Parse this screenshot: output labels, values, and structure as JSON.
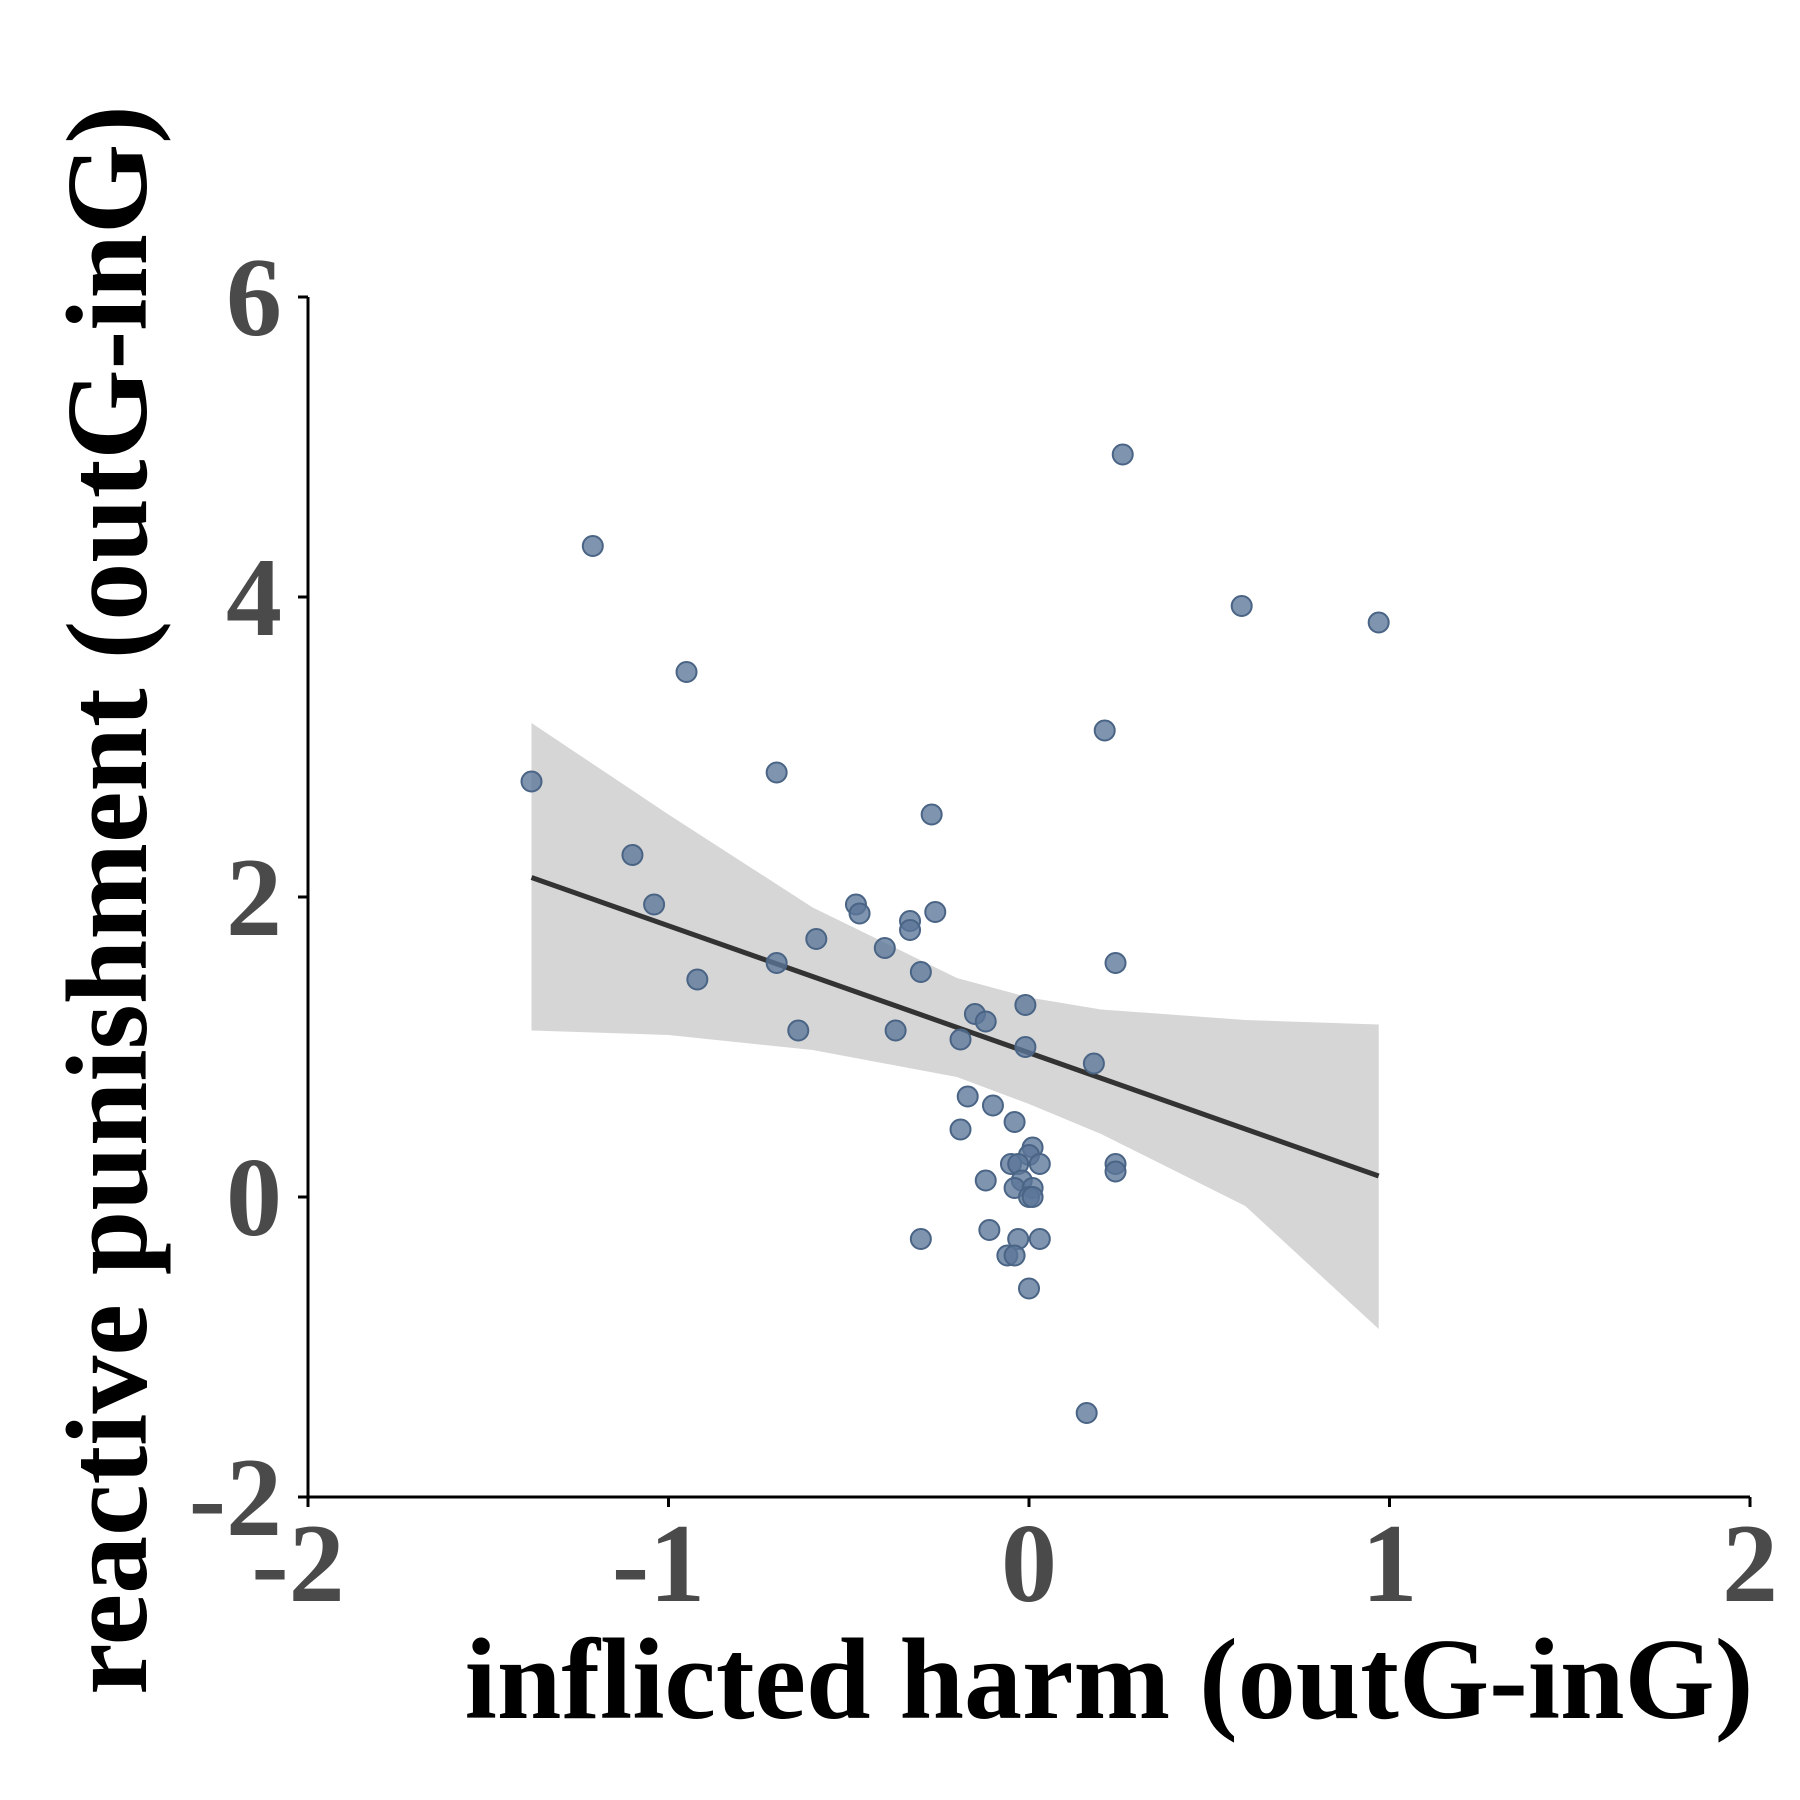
{
  "chart_data": {
    "type": "scatter",
    "xlabel": "inflicted harm (outG-inG)",
    "ylabel": "reactive punishment (outG-inG)",
    "xlim": [
      -2,
      2
    ],
    "ylim": [
      -2,
      6
    ],
    "xticks": [
      -2,
      -1,
      0,
      1,
      2
    ],
    "yticks": [
      -2,
      0,
      2,
      4,
      6
    ],
    "grid": false,
    "points": [
      {
        "x": 0.26,
        "y": 4.95
      },
      {
        "x": -1.21,
        "y": 4.34
      },
      {
        "x": 0.59,
        "y": 3.94
      },
      {
        "x": 0.97,
        "y": 3.83
      },
      {
        "x": -0.95,
        "y": 3.5
      },
      {
        "x": 0.21,
        "y": 3.11
      },
      {
        "x": -0.7,
        "y": 2.83
      },
      {
        "x": -1.38,
        "y": 2.77
      },
      {
        "x": -0.27,
        "y": 2.55
      },
      {
        "x": -1.1,
        "y": 2.28
      },
      {
        "x": -1.04,
        "y": 1.95
      },
      {
        "x": -0.48,
        "y": 1.95
      },
      {
        "x": -0.47,
        "y": 1.89
      },
      {
        "x": -0.26,
        "y": 1.9
      },
      {
        "x": -0.33,
        "y": 1.84
      },
      {
        "x": -0.33,
        "y": 1.78
      },
      {
        "x": -0.59,
        "y": 1.72
      },
      {
        "x": -0.4,
        "y": 1.66
      },
      {
        "x": -0.7,
        "y": 1.56
      },
      {
        "x": 0.24,
        "y": 1.56
      },
      {
        "x": -0.3,
        "y": 1.5
      },
      {
        "x": -0.92,
        "y": 1.45
      },
      {
        "x": -0.01,
        "y": 1.28
      },
      {
        "x": -0.15,
        "y": 1.22
      },
      {
        "x": -0.12,
        "y": 1.17
      },
      {
        "x": -0.64,
        "y": 1.11
      },
      {
        "x": -0.37,
        "y": 1.11
      },
      {
        "x": -0.19,
        "y": 1.05
      },
      {
        "x": -0.01,
        "y": 1.0
      },
      {
        "x": 0.18,
        "y": 0.89
      },
      {
        "x": -0.17,
        "y": 0.67
      },
      {
        "x": -0.1,
        "y": 0.61
      },
      {
        "x": -0.04,
        "y": 0.5
      },
      {
        "x": -0.19,
        "y": 0.45
      },
      {
        "x": 0.01,
        "y": 0.33
      },
      {
        "x": 0.0,
        "y": 0.28
      },
      {
        "x": -0.05,
        "y": 0.22
      },
      {
        "x": -0.03,
        "y": 0.22
      },
      {
        "x": 0.03,
        "y": 0.22
      },
      {
        "x": 0.24,
        "y": 0.22
      },
      {
        "x": 0.24,
        "y": 0.17
      },
      {
        "x": -0.12,
        "y": 0.11
      },
      {
        "x": -0.02,
        "y": 0.11
      },
      {
        "x": -0.04,
        "y": 0.06
      },
      {
        "x": 0.01,
        "y": 0.06
      },
      {
        "x": 0.0,
        "y": 0.0
      },
      {
        "x": 0.01,
        "y": 0.0
      },
      {
        "x": -0.11,
        "y": -0.22
      },
      {
        "x": -0.3,
        "y": -0.28
      },
      {
        "x": -0.03,
        "y": -0.28
      },
      {
        "x": 0.03,
        "y": -0.28
      },
      {
        "x": -0.06,
        "y": -0.39
      },
      {
        "x": -0.04,
        "y": -0.39
      },
      {
        "x": 0.0,
        "y": -0.61
      },
      {
        "x": 0.16,
        "y": -1.44
      }
    ],
    "fit_line": {
      "x": [
        -1.38,
        0.97
      ],
      "y": [
        2.13,
        0.14
      ]
    },
    "confidence_band": {
      "x": [
        -1.38,
        -1.0,
        -0.6,
        -0.2,
        0.0,
        0.2,
        0.6,
        0.97
      ],
      "upper": [
        3.16,
        2.55,
        1.93,
        1.46,
        1.33,
        1.25,
        1.18,
        1.15
      ],
      "lower": [
        1.11,
        1.08,
        0.98,
        0.8,
        0.62,
        0.42,
        -0.06,
        -0.88
      ]
    },
    "colors": {
      "point": "#5b7698",
      "point_edge": "#4a6485",
      "line": "#333333",
      "band": "#d6d6d6",
      "axis": "#000000",
      "tick_label": "#4a4a4a"
    }
  }
}
